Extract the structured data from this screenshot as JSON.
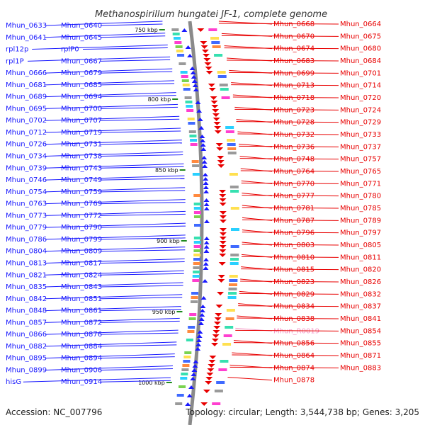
{
  "title": "Methanospirillum hungatei JF-1, complete genome",
  "footer": {
    "accession": "Accession: NC_007796",
    "topology": "Topology: circular; Length: 3,544,738 bp; Genes: 3,205"
  },
  "ticks": [
    "750 kbp",
    "800 kbp",
    "850 kbp",
    "900 kbp",
    "950 kbp",
    "1000 kbp"
  ],
  "left_labels": [
    "Mhun_0633",
    "Mhun_0640",
    "Mhun_0641",
    "Mhun_0645",
    "rpl12p",
    "rplP0",
    "rpl1P",
    "Mhun_0667",
    "Mhun_0666",
    "Mhun_0679",
    "Mhun_0681",
    "Mhun_0685",
    "Mhun_0689",
    "Mhun_0694",
    "Mhun_0695",
    "Mhun_0700",
    "Mhun_0702",
    "Mhun_0707",
    "Mhun_0712",
    "Mhun_0719",
    "Mhun_0726",
    "Mhun_0731",
    "Mhun_0734",
    "Mhun_0738",
    "Mhun_0739",
    "Mhun_0743",
    "Mhun_0746",
    "Mhun_0749",
    "Mhun_0754",
    "Mhun_0759",
    "Mhun_0763",
    "Mhun_0769",
    "Mhun_0773",
    "Mhun_0772",
    "Mhun_0779",
    "Mhun_0790",
    "Mhun_0786",
    "Mhun_0799",
    "Mhun_0804",
    "Mhun_0809",
    "Mhun_0813",
    "Mhun_0817",
    "Mhun_0821",
    "Mhun_0824",
    "Mhun_0835",
    "Mhun_0843",
    "Mhun_0842",
    "Mhun_0851",
    "Mhun_0848",
    "Mhun_0861",
    "Mhun_0857",
    "Mhun_0872",
    "Mhun_0866",
    "Mhun_0876",
    "Mhun_0882",
    "Mhun_0884",
    "Mhun_0895",
    "Mhun_0894",
    "Mhun_0899",
    "Mhun_0906",
    "hisG",
    "Mhun_0914"
  ],
  "right_labels": [
    "Mhun_0668",
    "Mhun_0664",
    "Mhun_0670",
    "Mhun_0675",
    "Mhun_0674",
    "Mhun_0680",
    "Mhun_0683",
    "Mhun_0684",
    "Mhun_0699",
    "Mhun_0701",
    "Mhun_0713",
    "Mhun_0714",
    "Mhun_0718",
    "Mhun_0720",
    "Mhun_0723",
    "Mhun_0724",
    "Mhun_0728",
    "Mhun_0729",
    "Mhun_0732",
    "Mhun_0733",
    "Mhun_0736",
    "Mhun_0737",
    "Mhun_0748",
    "Mhun_0757",
    "Mhun_0764",
    "Mhun_0765",
    "Mhun_0770",
    "Mhun_0771",
    "Mhun_0777",
    "Mhun_0780",
    "Mhun_0781",
    "Mhun_0785",
    "Mhun_0787",
    "Mhun_0789",
    "Mhun_0796",
    "Mhun_0797",
    "Mhun_0803",
    "Mhun_0805",
    "Mhun_0810",
    "Mhun_0811",
    "Mhun_0815",
    "Mhun_0820",
    "Mhun_0823",
    "Mhun_0826",
    "Mhun_0829",
    "Mhun_0832",
    "Mhun_0834",
    "Mhun_0837",
    "Mhun_0838",
    "Mhun_0841",
    "Mhun_R0019",
    "Mhun_0854",
    "Mhun_0856",
    "Mhun_0855",
    "Mhun_0864",
    "Mhun_0871",
    "Mhun_0874",
    "Mhun_0883",
    "Mhun_0878"
  ],
  "pink_labels": [
    "Mhun_R0019"
  ],
  "colors": {
    "forward": "#1a1aff",
    "reverse": "#e80000",
    "rna": "#f59ac9",
    "backbone": "#8a8a8a",
    "tick": "#1f8a1f"
  }
}
